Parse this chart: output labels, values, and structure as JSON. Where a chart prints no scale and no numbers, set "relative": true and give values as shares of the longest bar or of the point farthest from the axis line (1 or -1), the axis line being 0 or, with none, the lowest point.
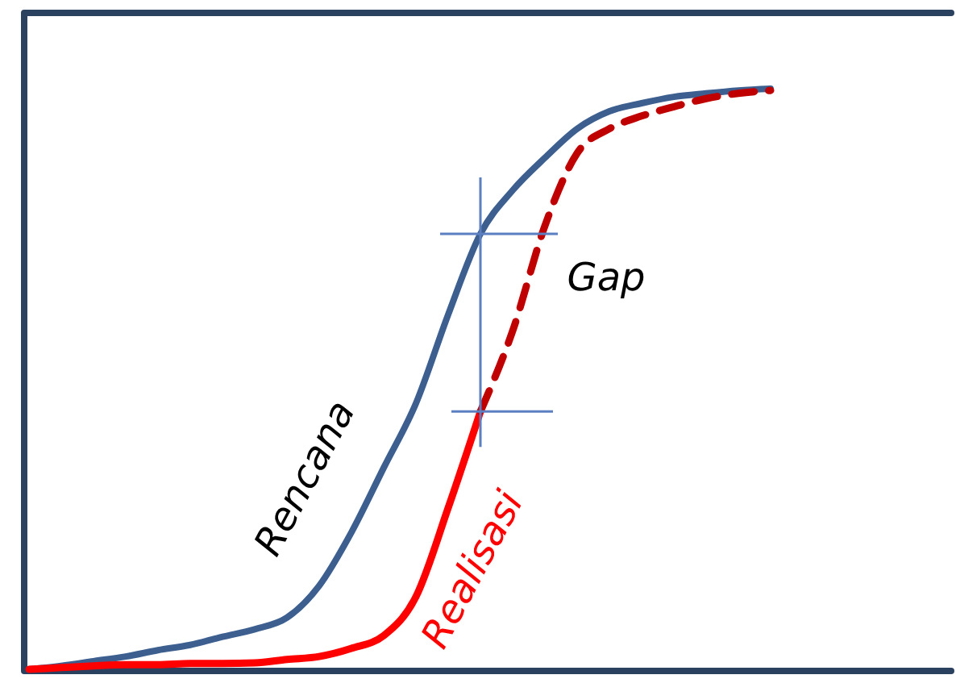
{
  "chart_data": {
    "type": "line",
    "relative": true,
    "categories": [
      null,
      null,
      null,
      null,
      null,
      null,
      null,
      null,
      null,
      null,
      null,
      null,
      null,
      null,
      null,
      null,
      null,
      null,
      null,
      null,
      null,
      null,
      null,
      null
    ],
    "series": [
      {
        "name": "Rencana",
        "color": "#3c5f8f",
        "line_style": "solid",
        "values": [
          0,
          0.006,
          0.014,
          0.022,
          0.033,
          0.042,
          0.056,
          0.069,
          0.089,
          0.144,
          0.236,
          0.347,
          0.458,
          0.611,
          0.75,
          0.825,
          0.881,
          0.931,
          0.961,
          0.975,
          0.986,
          0.992,
          0.997,
          1
        ]
      },
      {
        "name": "Realisasi",
        "color": "#ff0000",
        "line_style": "solid",
        "values": [
          0,
          0.003,
          0.006,
          0.008,
          0.008,
          0.01,
          0.01,
          0.011,
          0.017,
          0.022,
          0.036,
          0.058,
          0.125,
          0.278,
          0.444,
          null,
          null,
          null,
          null,
          null,
          null,
          null,
          null,
          null
        ]
      },
      {
        "color": "#c00000",
        "line_style": "dashed",
        "values": [
          null,
          null,
          null,
          null,
          null,
          null,
          null,
          null,
          null,
          null,
          null,
          null,
          null,
          null,
          0.444,
          0.583,
          0.764,
          0.889,
          0.931,
          0.953,
          0.969,
          0.983,
          0.992,
          0.997
        ]
      }
    ],
    "annotations": [
      "Gap"
    ]
  }
}
